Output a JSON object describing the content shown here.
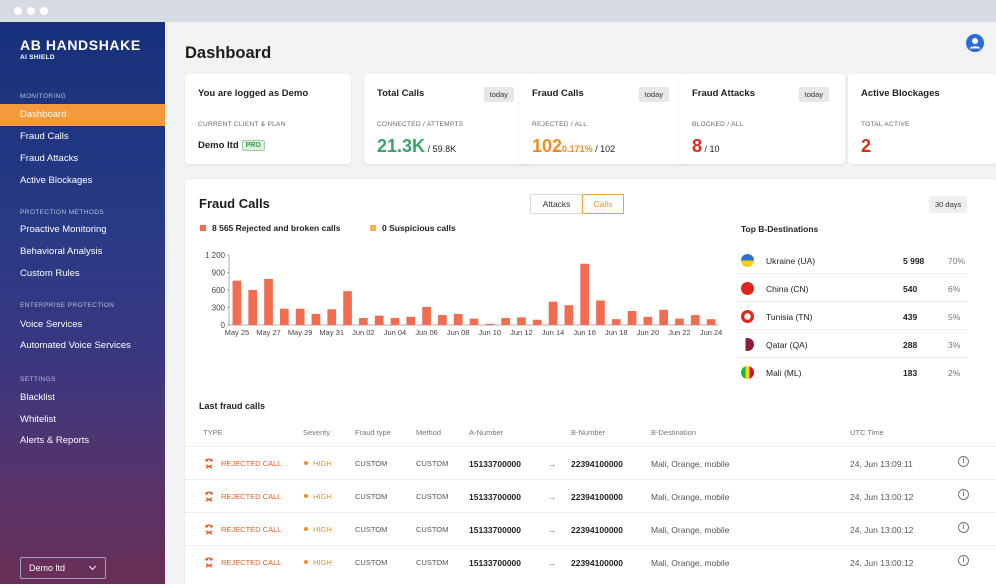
{
  "brand": {
    "name": "AB HANDSHAKE",
    "sub": "AI SHIELD"
  },
  "sidebar": {
    "sections": [
      {
        "title": "MONITORING",
        "items": [
          "Dashboard",
          "Fraud Calls",
          "Fraud Attacks",
          "Active Blockages"
        ]
      },
      {
        "title": "PROTECTION METHODS",
        "items": [
          "Proactive Monitoring",
          "Behavioral Analysis",
          "Custom Rules"
        ]
      },
      {
        "title": "ENTERPRISE PROTECTION",
        "items": [
          "Voice Services",
          "Automated Voice Services"
        ]
      },
      {
        "title": "SETTINGS",
        "items": [
          "Blacklist",
          "Whitelist",
          "Alerts & Reports"
        ]
      }
    ],
    "active_item": "Dashboard",
    "client_select": "Demo ltd"
  },
  "page": {
    "title": "Dashboard"
  },
  "cards": {
    "login": {
      "title": "You are logged as Demo",
      "sub": "CURRENT CLIENT & PLAN",
      "client": "Demo ltd",
      "plan": "PRO"
    },
    "total_calls": {
      "title": "Total Calls",
      "badge": "today",
      "sub": "CONNECTED / ATTEMPTS",
      "value": "21.3K",
      "total": "/ 59.8K"
    },
    "fraud_calls": {
      "title": "Fraud Calls",
      "badge": "today",
      "sub": "REJECTED / ALL",
      "value": "102",
      "pct": "0.171%",
      "total": "/ 102"
    },
    "fraud_attacks": {
      "title": "Fraud Attacks",
      "badge": "today",
      "sub": "BLOCKED / ALL",
      "value": "8",
      "total": "/ 10"
    },
    "active_blockages": {
      "title": "Active Blockages",
      "sub": "TOTAL ACTIVE",
      "value": "2"
    }
  },
  "fraud_panel": {
    "title": "Fraud Calls",
    "toggle": [
      "Attacks",
      "Calls"
    ],
    "toggle_active": "Calls",
    "range": "30 days",
    "legend": [
      {
        "label": "8 565 Rejected and broken calls",
        "color": "#f26d4f"
      },
      {
        "label": "0 Suspicious calls",
        "color": "#f6b44d"
      }
    ]
  },
  "chart_data": {
    "type": "bar",
    "categories": [
      "May 25",
      "May 26",
      "May 27",
      "May 28",
      "May 29",
      "May 30",
      "May 31",
      "Jun 01",
      "Jun 02",
      "Jun 03",
      "Jun 04",
      "Jun 05",
      "Jun 06",
      "Jun 07",
      "Jun 08",
      "Jun 09",
      "Jun 10",
      "Jun 11",
      "Jun 12",
      "Jun 13",
      "Jun 14",
      "Jun 15",
      "Jun 16",
      "Jun 17",
      "Jun 18",
      "Jun 19",
      "Jun 20",
      "Jun 21",
      "Jun 22",
      "Jun 23",
      "Jun 24"
    ],
    "x_tick_labels": [
      "May 25",
      "May 27",
      "May 29",
      "May 31",
      "Jun 02",
      "Jun 04",
      "Jun 06",
      "Jun 08",
      "Jun 10",
      "Jun 12",
      "Jun 14",
      "Jun 16",
      "Jun 18",
      "Jun 20",
      "Jun 22",
      "Jun 24"
    ],
    "series": [
      {
        "name": "8 565 Rejected and broken calls",
        "color": "#f26d4f",
        "values": [
          760,
          600,
          790,
          280,
          280,
          190,
          270,
          580,
          120,
          160,
          120,
          140,
          310,
          170,
          190,
          110,
          20,
          120,
          130,
          90,
          400,
          340,
          1050,
          420,
          100,
          240,
          140,
          260,
          110,
          170,
          100
        ]
      }
    ],
    "yticks": [
      0,
      300,
      600,
      900,
      1200
    ],
    "ytick_labels": [
      "0",
      "300",
      "600",
      "900",
      "1 200"
    ],
    "ylim": [
      0,
      1200
    ]
  },
  "destinations": {
    "title": "Top B-Destinations",
    "rows": [
      {
        "flag": "ukraine-flag-icon",
        "name": "Ukraine (UA)",
        "count": "5 998",
        "pct": "70%"
      },
      {
        "flag": "china-flag-icon",
        "name": "China (CN)",
        "count": "540",
        "pct": "6%"
      },
      {
        "flag": "tunisia-flag-icon",
        "name": "Tunisia (TN)",
        "count": "439",
        "pct": "5%"
      },
      {
        "flag": "qatar-flag-icon",
        "name": "Qatar (QA)",
        "count": "288",
        "pct": "3%"
      },
      {
        "flag": "mali-flag-icon",
        "name": "Mali (ML)",
        "count": "183",
        "pct": "2%"
      }
    ]
  },
  "last_calls": {
    "title": "Last fraud calls",
    "headers": [
      "TYPE",
      "Severity",
      "Fraud type",
      "Method",
      "A-Number",
      "B-Number",
      "B-Destination",
      "UTC Time"
    ],
    "rows": [
      {
        "type": "REJECTED CALL",
        "severity": "HIGH",
        "fraud_type": "CUSTOM",
        "method": "CUSTOM",
        "a": "15133700000",
        "arrow": "→",
        "b": "22394100000",
        "dest": "Mali, Orange, mobile",
        "time": "24, Jun 13:09:11"
      },
      {
        "type": "REJECTED CALL",
        "severity": "HIGH",
        "fraud_type": "CUSTOM",
        "method": "CUSTOM",
        "a": "15133700000",
        "arrow": "→",
        "b": "22394100000",
        "dest": "Mali, Orange, mobile",
        "time": "24, Jun 13:00:12"
      },
      {
        "type": "REJECTED CALL",
        "severity": "HIGH",
        "fraud_type": "CUSTOM",
        "method": "CUSTOM",
        "a": "15133700000",
        "arrow": "→",
        "b": "22394100000",
        "dest": "Mali, Orange, mobile",
        "time": "24, Jun 13:00:12"
      },
      {
        "type": "REJECTED CALL",
        "severity": "HIGH",
        "fraud_type": "CUSTOM",
        "method": "CUSTOM",
        "a": "15133700000",
        "arrow": "→",
        "b": "22394100000",
        "dest": "Mali, Orange, mobile",
        "time": "24, Jun 13:00:12"
      }
    ]
  }
}
